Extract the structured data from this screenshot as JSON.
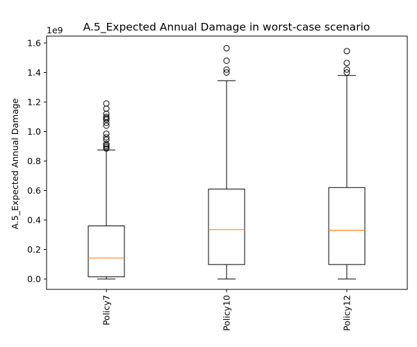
{
  "chart_data": {
    "type": "box",
    "title": "A.5_Expected Annual Damage in worst-case scenario",
    "xlabel": "",
    "ylabel": "A.5_Expected Annual Damage",
    "y_multiplier_label": "1e9",
    "ylim": [
      -0.08,
      1.64
    ],
    "y_ticks": [
      0.0,
      0.2,
      0.4,
      0.6,
      0.8,
      1.0,
      1.2,
      1.4,
      1.6
    ],
    "y_tick_labels": [
      "0.0",
      "0.2",
      "0.4",
      "0.6",
      "0.8",
      "1.0",
      "1.2",
      "1.4",
      "1.6"
    ],
    "grid": false,
    "categories": [
      "Policy7",
      "Policy10",
      "Policy12"
    ],
    "boxes": [
      {
        "name": "Policy7",
        "whisker_low": 0.0,
        "q1": 0.015,
        "median": 0.142,
        "q3": 0.36,
        "whisker_high": 0.875,
        "outliers": [
          0.885,
          0.895,
          0.905,
          0.915,
          0.945,
          0.96,
          0.985,
          1.04,
          1.06,
          1.08,
          1.09,
          1.1,
          1.12,
          1.155,
          1.19
        ]
      },
      {
        "name": "Policy10",
        "whisker_low": 0.0,
        "q1": 0.098,
        "median": 0.335,
        "q3": 0.61,
        "whisker_high": 1.345,
        "outliers": [
          1.4,
          1.42,
          1.48,
          1.565
        ]
      },
      {
        "name": "Policy12",
        "whisker_low": 0.0,
        "q1": 0.098,
        "median": 0.33,
        "q3": 0.62,
        "whisker_high": 1.38,
        "outliers": [
          1.4,
          1.42,
          1.465,
          1.545
        ]
      }
    ],
    "colors": {
      "box": "#000000",
      "median": "#ff7f0e",
      "background": "#ffffff"
    }
  }
}
